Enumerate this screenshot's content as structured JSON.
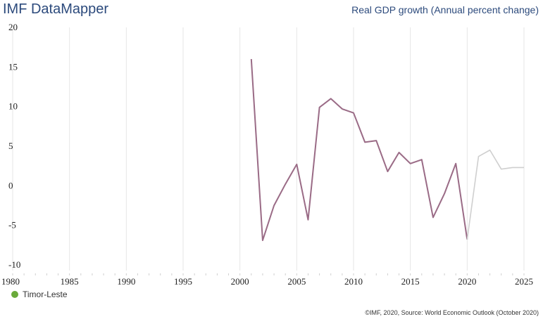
{
  "header": {
    "brand": "IMF DataMapper"
  },
  "chart_title": "Real GDP growth (Annual percent change)",
  "source": "©IMF, 2020, Source: World Economic Outlook (October 2020)",
  "colors": {
    "series": "#9a6b86",
    "projection": "#cfcfcf",
    "legend_dot": "#6aaa3a",
    "grid": "#e6e6e6"
  },
  "chart_data": {
    "type": "line",
    "title": "Real GDP growth (Annual percent change)",
    "xlim": [
      1980,
      2025
    ],
    "ylim": [
      -10,
      20
    ],
    "x_ticks": [
      1980,
      1985,
      1990,
      1995,
      2000,
      2005,
      2010,
      2015,
      2020,
      2025
    ],
    "y_ticks": [
      20,
      15,
      10,
      5,
      0,
      -5,
      -10
    ],
    "legend": {
      "placement": "bottom-left"
    },
    "series": [
      {
        "name": "Timor-Leste",
        "x": [
          2001,
          2002,
          2003,
          2004,
          2005,
          2006,
          2007,
          2008,
          2009,
          2010,
          2011,
          2012,
          2013,
          2014,
          2015,
          2016,
          2017,
          2018,
          2019,
          2020
        ],
        "values": [
          16.0,
          -6.9,
          -2.5,
          0.2,
          2.7,
          -4.3,
          9.9,
          11.0,
          9.7,
          9.2,
          5.5,
          5.7,
          1.8,
          4.2,
          2.8,
          3.3,
          -4.0,
          -1.0,
          2.8,
          -6.8
        ]
      },
      {
        "projection": true,
        "x": [
          2020,
          2021,
          2022,
          2023,
          2024,
          2025
        ],
        "values": [
          -6.8,
          3.7,
          4.5,
          2.1,
          2.3,
          2.3
        ]
      }
    ]
  },
  "legend_items": [
    {
      "label": "Timor-Leste"
    }
  ]
}
